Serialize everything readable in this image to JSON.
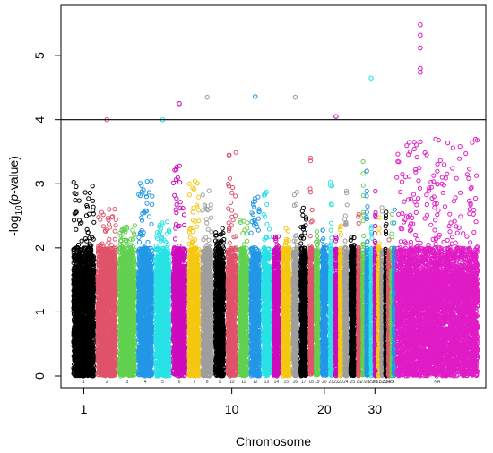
{
  "chart_data": {
    "type": "scatter",
    "subtype": "manhattan",
    "title": "",
    "xlabel": "Chromosome",
    "ylabel_parts": {
      "prefix": "-log",
      "sub": "10",
      "open": "(",
      "italic": "p",
      "suffix": "-value)"
    },
    "ylim": [
      0,
      5.7
    ],
    "yticks": [
      0,
      1,
      2,
      3,
      4,
      5
    ],
    "xticks": [
      "1",
      "10",
      "20",
      "30"
    ],
    "threshold": 4,
    "grid": false,
    "legend": "none",
    "chromosome_labels": [
      "1",
      "2",
      "3",
      "4",
      "5",
      "6",
      "7",
      "8",
      "9",
      "10",
      "11",
      "12",
      "13",
      "14",
      "15",
      "16",
      "17",
      "18",
      "19",
      "20",
      "21",
      "22",
      "23",
      "24",
      "25",
      "26",
      "27",
      "28",
      "29",
      "30",
      "31",
      "32",
      "33",
      "34",
      "35",
      "X",
      "NA"
    ],
    "chromosome_widths": [
      1.6,
      1.45,
      1.25,
      1.15,
      1.15,
      1.05,
      0.9,
      0.85,
      0.8,
      0.8,
      0.75,
      0.8,
      0.7,
      0.6,
      0.7,
      0.5,
      0.6,
      0.4,
      0.4,
      0.55,
      0.35,
      0.3,
      0.3,
      0.4,
      0.5,
      0.3,
      0.25,
      0.3,
      0.25,
      0.25,
      0.2,
      0.25,
      0.2,
      0.2,
      0.15,
      0.2,
      5.6
    ],
    "chromosome_colors": [
      "#000000",
      "#DF536B",
      "#61D04F",
      "#2297E6",
      "#28E2E5",
      "#CD0BBC",
      "#F5C710",
      "#9E9E9E"
    ],
    "na_color": "#E01CC6",
    "top_hits": [
      {
        "chrom": "2",
        "value": 4.0
      },
      {
        "chrom": "5",
        "value": 4.0
      },
      {
        "chrom": "6",
        "value": 4.25
      },
      {
        "chrom": "8",
        "value": 4.35
      },
      {
        "chrom": "12",
        "value": 4.36
      },
      {
        "chrom": "16",
        "value": 4.35
      },
      {
        "chrom": "22",
        "value": 4.05
      },
      {
        "chrom": "29",
        "value": 4.65
      },
      {
        "chrom": "NA",
        "value": 5.48
      },
      {
        "chrom": "NA",
        "value": 5.32
      },
      {
        "chrom": "NA",
        "value": 5.12
      },
      {
        "chrom": "NA",
        "value": 4.8
      },
      {
        "chrom": "NA",
        "value": 4.74
      }
    ]
  }
}
